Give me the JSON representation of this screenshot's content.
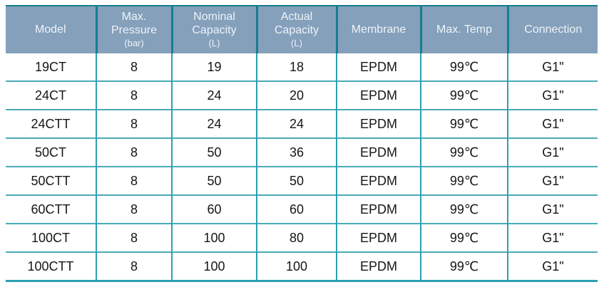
{
  "colors": {
    "page_bg": "#ffffff",
    "header_bg": "#84a0bb",
    "header_text": "#eef3f8",
    "grid_teal": "#2aa0b2",
    "grid_teal_light": "#49abb6",
    "grid_teal_dark": "#157f8e",
    "body_text": "#161616"
  },
  "table": {
    "columns": [
      {
        "id": "model",
        "title_lines": [
          "Model"
        ],
        "unit": ""
      },
      {
        "id": "max-pressure",
        "title_lines": [
          "Max.",
          "Pressure"
        ],
        "unit": "(bar)"
      },
      {
        "id": "nominal-capacity",
        "title_lines": [
          "Nominal",
          "Capacity"
        ],
        "unit": "(L)"
      },
      {
        "id": "actual-capacity",
        "title_lines": [
          "Actual",
          "Capacity"
        ],
        "unit": "(L)"
      },
      {
        "id": "membrane",
        "title_lines": [
          "Membrane"
        ],
        "unit": ""
      },
      {
        "id": "max-temp",
        "title_lines": [
          "Max. Temp"
        ],
        "unit": ""
      },
      {
        "id": "connection",
        "title_lines": [
          "Connection"
        ],
        "unit": ""
      }
    ],
    "rows": [
      [
        "19CT",
        "8",
        "19",
        "18",
        "EPDM",
        "99℃",
        "G1\""
      ],
      [
        "24CT",
        "8",
        "24",
        "20",
        "EPDM",
        "99℃",
        "G1\""
      ],
      [
        "24CTT",
        "8",
        "24",
        "24",
        "EPDM",
        "99℃",
        "G1\""
      ],
      [
        "50CT",
        "8",
        "50",
        "36",
        "EPDM",
        "99℃",
        "G1\""
      ],
      [
        "50CTT",
        "8",
        "50",
        "50",
        "EPDM",
        "99℃",
        "G1\""
      ],
      [
        "60CTT",
        "8",
        "60",
        "60",
        "EPDM",
        "99℃",
        "G1\""
      ],
      [
        "100CT",
        "8",
        "100",
        "80",
        "EPDM",
        "99℃",
        "G1\""
      ],
      [
        "100CTT",
        "8",
        "100",
        "100",
        "EPDM",
        "99℃",
        "G1\""
      ]
    ]
  }
}
